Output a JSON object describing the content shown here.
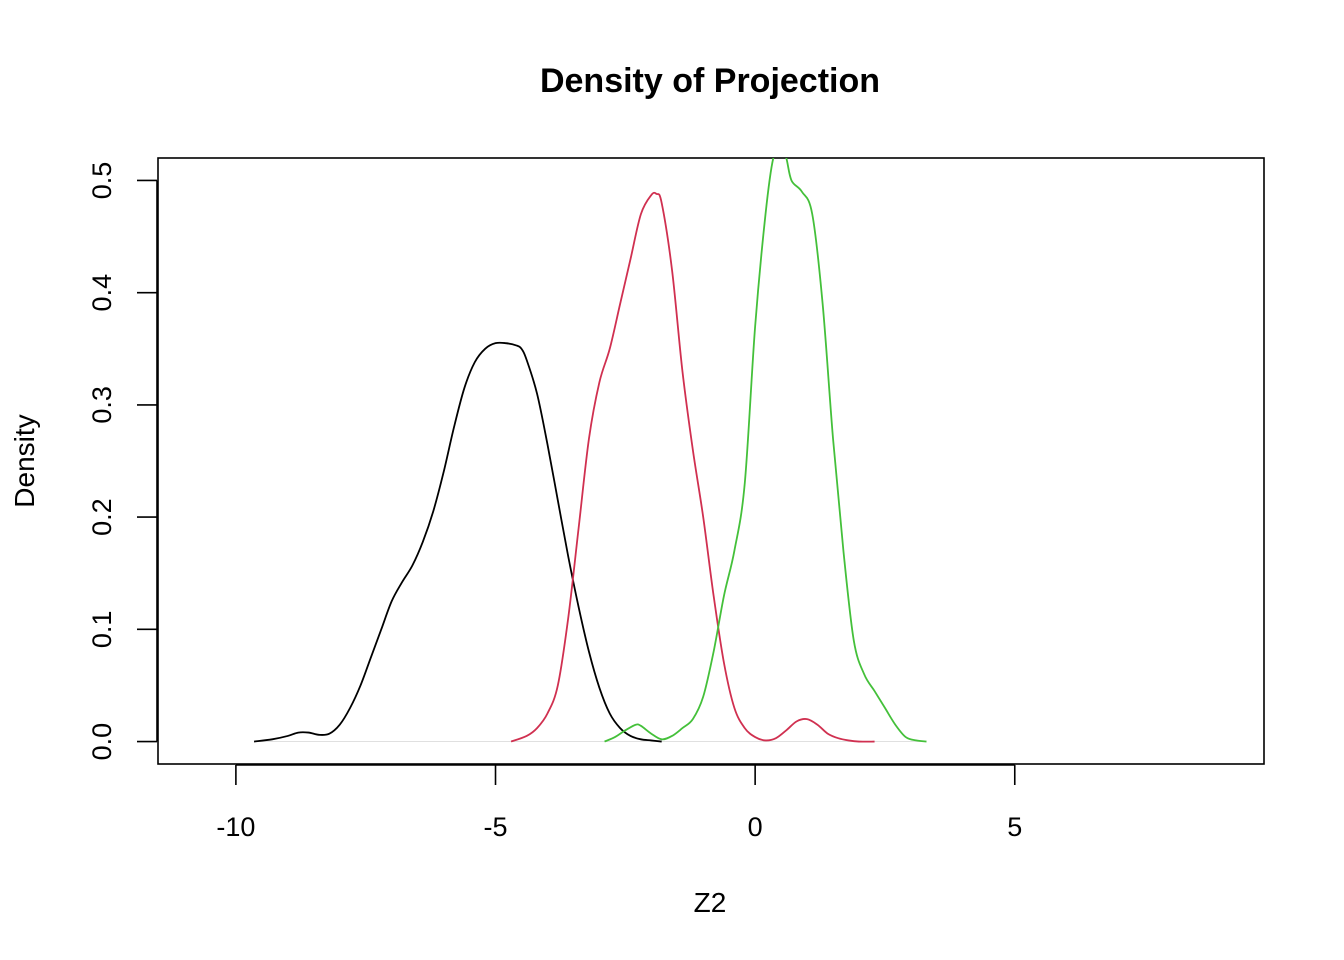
{
  "chart_data": {
    "type": "line",
    "title": "Density of Projection",
    "xlabel": "Z2",
    "ylabel": "Density",
    "xlim": [
      -11.5,
      9.8
    ],
    "ylim": [
      -0.02,
      0.52
    ],
    "xticks": [
      -10,
      -5,
      0,
      5
    ],
    "xtick_labels": [
      "-10",
      "-5",
      "0",
      "5"
    ],
    "yticks": [
      0.0,
      0.1,
      0.2,
      0.3,
      0.4,
      0.5
    ],
    "ytick_labels": [
      "0.0",
      "0.1",
      "0.2",
      "0.3",
      "0.4",
      "0.5"
    ],
    "grid": false,
    "series": [
      {
        "color": "#000000",
        "x": [
          -9.65,
          -9.3,
          -9.0,
          -8.8,
          -8.6,
          -8.4,
          -8.2,
          -8.0,
          -7.8,
          -7.6,
          -7.4,
          -7.2,
          -7.0,
          -6.8,
          -6.6,
          -6.4,
          -6.2,
          -6.0,
          -5.8,
          -5.6,
          -5.4,
          -5.2,
          -5.0,
          -4.8,
          -4.6,
          -4.5,
          -4.4,
          -4.2,
          -4.0,
          -3.8,
          -3.6,
          -3.4,
          -3.2,
          -3.0,
          -2.8,
          -2.6,
          -2.4,
          -2.2,
          -2.0,
          -1.8
        ],
        "y": [
          0.0,
          0.002,
          0.005,
          0.008,
          0.008,
          0.006,
          0.007,
          0.015,
          0.03,
          0.05,
          0.075,
          0.1,
          0.125,
          0.142,
          0.157,
          0.178,
          0.205,
          0.24,
          0.28,
          0.315,
          0.338,
          0.35,
          0.355,
          0.355,
          0.353,
          0.35,
          0.34,
          0.31,
          0.265,
          0.215,
          0.165,
          0.12,
          0.08,
          0.048,
          0.025,
          0.012,
          0.005,
          0.002,
          0.001,
          0.0
        ]
      },
      {
        "color": "#D03050",
        "x": [
          -4.7,
          -4.4,
          -4.2,
          -4.0,
          -3.8,
          -3.6,
          -3.4,
          -3.2,
          -3.0,
          -2.8,
          -2.6,
          -2.4,
          -2.2,
          -2.0,
          -1.9,
          -1.8,
          -1.6,
          -1.4,
          -1.2,
          -1.0,
          -0.8,
          -0.6,
          -0.4,
          -0.2,
          0.0,
          0.2,
          0.4,
          0.6,
          0.8,
          1.0,
          1.2,
          1.4,
          1.6,
          1.8,
          2.0,
          2.3
        ],
        "y": [
          0.0,
          0.005,
          0.012,
          0.025,
          0.05,
          0.11,
          0.19,
          0.27,
          0.32,
          0.35,
          0.39,
          0.43,
          0.47,
          0.487,
          0.488,
          0.48,
          0.42,
          0.33,
          0.26,
          0.2,
          0.13,
          0.07,
          0.03,
          0.012,
          0.004,
          0.001,
          0.003,
          0.01,
          0.018,
          0.02,
          0.015,
          0.007,
          0.003,
          0.001,
          0.0,
          0.0
        ]
      },
      {
        "color": "#44C03A",
        "x": [
          -2.9,
          -2.7,
          -2.5,
          -2.3,
          -2.2,
          -2.0,
          -1.8,
          -1.6,
          -1.4,
          -1.2,
          -1.0,
          -0.8,
          -0.6,
          -0.4,
          -0.2,
          0.0,
          0.2,
          0.35,
          0.5,
          0.6,
          0.7,
          0.9,
          1.1,
          1.3,
          1.5,
          1.7,
          1.9,
          2.1,
          2.3,
          2.5,
          2.7,
          2.9,
          3.1,
          3.3
        ],
        "y": [
          0.0,
          0.004,
          0.01,
          0.015,
          0.014,
          0.007,
          0.002,
          0.005,
          0.012,
          0.02,
          0.04,
          0.08,
          0.13,
          0.17,
          0.23,
          0.37,
          0.47,
          0.52,
          0.53,
          0.52,
          0.5,
          0.49,
          0.47,
          0.39,
          0.27,
          0.17,
          0.09,
          0.06,
          0.045,
          0.03,
          0.015,
          0.004,
          0.001,
          0.0
        ]
      }
    ]
  }
}
